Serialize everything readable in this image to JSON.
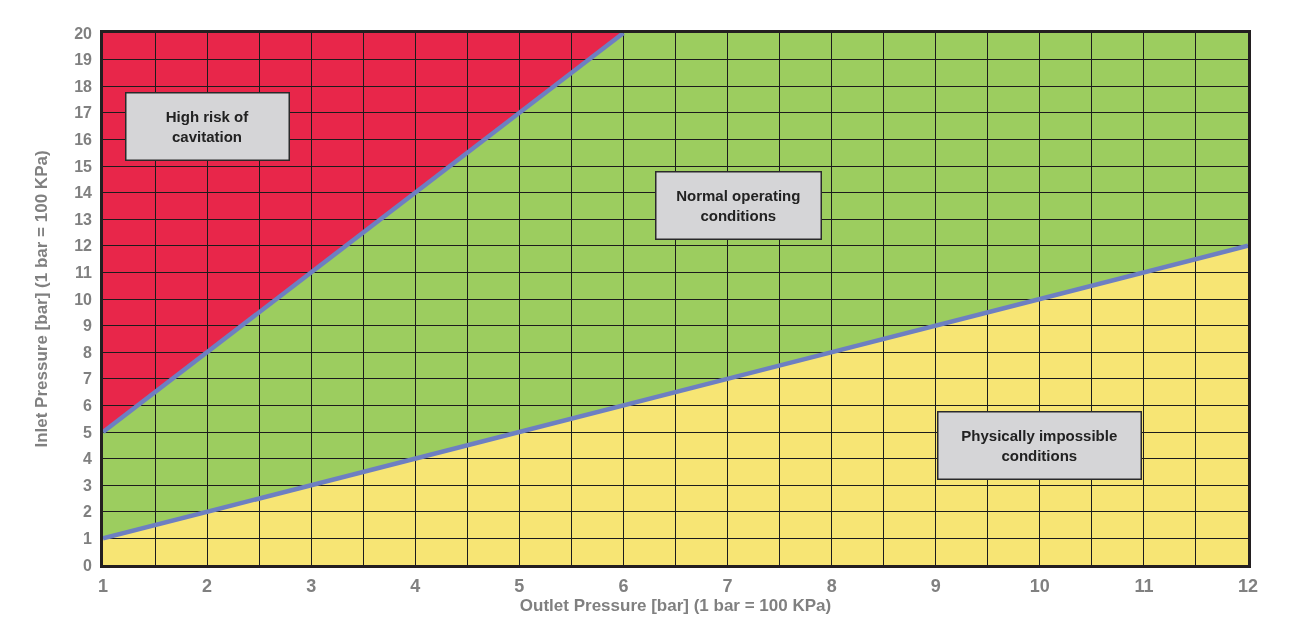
{
  "chart_data": {
    "type": "area",
    "stacked": true,
    "xlabel": "Outlet Pressure [bar] (1 bar = 100 KPa)",
    "ylabel": "Inlet Pressure [bar] (1 bar = 100 KPa)",
    "x": [
      1,
      6,
      12
    ],
    "series": [
      {
        "color": "#f7e574",
        "values": [
          1,
          6,
          12
        ]
      },
      {
        "color": "#9ccd5f",
        "values": [
          4,
          14,
          8
        ]
      },
      {
        "color": "#e8264a",
        "values": [
          15,
          0,
          0
        ]
      },
      {
        "type": "line",
        "color": "#6d7fc2",
        "x": [
          1,
          12
        ],
        "values": [
          1,
          12
        ]
      },
      {
        "type": "line",
        "color": "#6d7fc2",
        "x": [
          1,
          6
        ],
        "values": [
          5,
          20
        ]
      }
    ],
    "xlim": [
      1,
      12
    ],
    "ylim": [
      0,
      20
    ],
    "xticks": [
      1,
      {
        "value": 1.5,
        "label": null
      },
      2,
      {
        "value": 2.5,
        "label": null
      },
      3,
      {
        "value": 3.5,
        "label": null
      },
      4,
      {
        "value": 4.5,
        "label": null
      },
      5,
      {
        "value": 5.5,
        "label": null
      },
      6,
      {
        "value": 6.5,
        "label": null
      },
      7,
      {
        "value": 7.5,
        "label": null
      },
      8,
      {
        "value": 8.5,
        "label": null
      },
      9,
      {
        "value": 9.5,
        "label": null
      },
      10,
      {
        "value": 10.5,
        "label": null
      },
      11,
      {
        "value": 11.5,
        "label": null
      },
      12
    ],
    "yticks": [
      0,
      1,
      2,
      3,
      4,
      5,
      6,
      7,
      8,
      9,
      10,
      11,
      12,
      13,
      14,
      15,
      16,
      17,
      18,
      19,
      20
    ],
    "grid": true,
    "annotations": [
      "High risk of\ncavitation",
      "Normal operating\nconditions",
      "Physically impossible\nconditions"
    ]
  }
}
